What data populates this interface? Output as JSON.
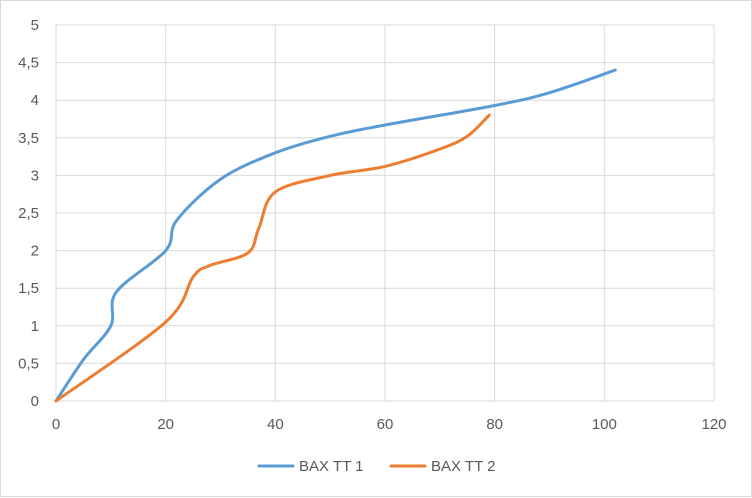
{
  "chart_data": {
    "type": "line",
    "title": "",
    "xlabel": "",
    "ylabel": "",
    "xlim": [
      0,
      120
    ],
    "ylim": [
      0,
      5
    ],
    "x_ticks": [
      "0",
      "20",
      "40",
      "60",
      "80",
      "100",
      "120"
    ],
    "y_ticks": [
      "0",
      "0,5",
      "1",
      "1,5",
      "2",
      "2,5",
      "3",
      "3,5",
      "4",
      "4,5",
      "5"
    ],
    "grid": true,
    "legend_position": "bottom",
    "series": [
      {
        "name": "BAX TT 1",
        "color": "#5b9bd5",
        "points": [
          [
            0,
            0
          ],
          [
            5,
            0.55
          ],
          [
            10,
            1.0
          ],
          [
            11,
            1.45
          ],
          [
            20,
            2.0
          ],
          [
            22,
            2.4
          ],
          [
            30,
            2.95
          ],
          [
            40,
            3.3
          ],
          [
            50,
            3.52
          ],
          [
            60,
            3.67
          ],
          [
            80,
            3.93
          ],
          [
            90,
            4.1
          ],
          [
            102,
            4.4
          ]
        ]
      },
      {
        "name": "BAX TT 2",
        "color": "#ed7d31",
        "points": [
          [
            0,
            0
          ],
          [
            20,
            1.05
          ],
          [
            25,
            1.65
          ],
          [
            28,
            1.8
          ],
          [
            35,
            1.97
          ],
          [
            37,
            2.3
          ],
          [
            40,
            2.78
          ],
          [
            50,
            3.0
          ],
          [
            60,
            3.12
          ],
          [
            70,
            3.35
          ],
          [
            75,
            3.52
          ],
          [
            79,
            3.8
          ]
        ]
      }
    ]
  }
}
